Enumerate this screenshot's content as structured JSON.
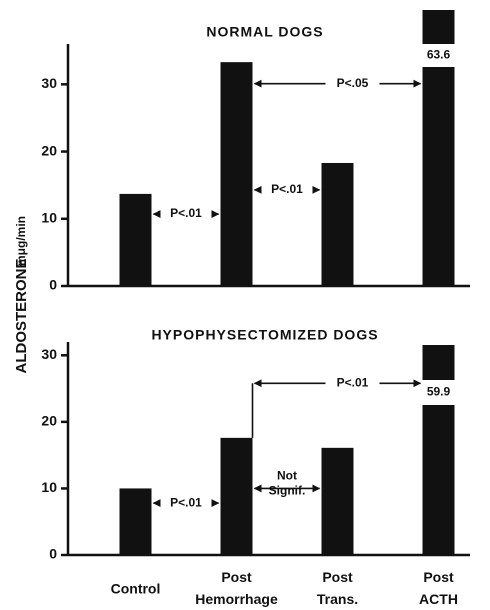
{
  "chart_data": [
    {
      "type": "bar",
      "title": "NORMAL DOGS",
      "ylabel": "ALDOSTERONE",
      "ylabel_units": "mμg/min",
      "values": [
        13.7,
        33.3,
        18.3,
        63.6
      ],
      "value_labels": [
        null,
        null,
        null,
        "63.6"
      ],
      "color": "#111111",
      "ylim": [
        0,
        36
      ],
      "yticks": [
        0,
        10,
        20,
        30
      ],
      "annotations": [
        {
          "text": "P<.01",
          "from": 0,
          "to": 1,
          "y": 10.7
        },
        {
          "text": "P<.01",
          "from": 1,
          "to": 2,
          "y": 14.3
        },
        {
          "text": "P<.05",
          "from": 1,
          "to": 3,
          "y": 30.1
        }
      ]
    },
    {
      "type": "bar",
      "title": "HYPOPHYSECTOMIZED DOGS",
      "categories": [
        "Control",
        "Post Hemorrhage",
        "Post Trans.",
        "Post ACTH"
      ],
      "values": [
        10,
        17.6,
        16.1,
        59.9
      ],
      "value_labels": [
        null,
        null,
        null,
        "59.9"
      ],
      "color": "#111111",
      "ylim": [
        0,
        32
      ],
      "yticks": [
        0,
        10,
        20,
        30
      ],
      "annotations": [
        {
          "text": "P<.01",
          "from": 0,
          "to": 1,
          "y": 7.8
        },
        {
          "text": "Not Signif.",
          "from": 1,
          "to": 2,
          "y": 10
        },
        {
          "text": "P<.01",
          "from": 1,
          "to": 3,
          "y": 25.8
        }
      ]
    }
  ]
}
